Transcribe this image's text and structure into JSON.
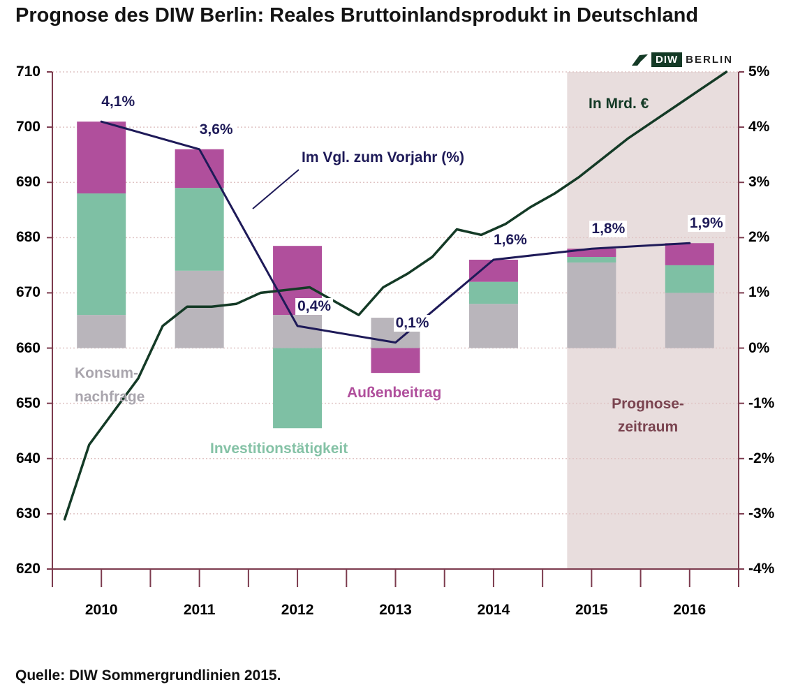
{
  "title": "Prognose des DIW Berlin: Reales Bruttoinlandsprodukt in Deutschland",
  "source": "Quelle: DIW Sommergrundlinien 2015.",
  "logo": {
    "diw": "DIW",
    "berlin": "BERLIN"
  },
  "annotations": {
    "growth_line_label": "Im Vgl. zum Vorjahr (%)",
    "gdp_line_label": "In Mrd. €",
    "konsum_line1": "Konsum-",
    "konsum_line2": "nachfrage",
    "invest_label": "Investitionstätigkeit",
    "aussen_label": "Außenbeitrag",
    "forecast_line1": "Prognose-",
    "forecast_line2": "zeitraum"
  },
  "colors": {
    "axis": "#7c3b4e",
    "grid": "#e0c5c5",
    "forecast_bg": "#e8dddd",
    "growth_line": "#1e1a58",
    "gdp_line": "#143a26",
    "text": "#000000"
  },
  "chart_data": {
    "type": "bar",
    "subtype": "stacked contribution bars with two line overlays",
    "title": "Prognose des DIW Berlin: Reales Bruttoinlandsprodukt in Deutschland",
    "categories": [
      "2010",
      "2011",
      "2012",
      "2013",
      "2014",
      "2015",
      "2016"
    ],
    "left_axis": {
      "unit": "Mrd. €",
      "min": 620,
      "max": 710,
      "step": 10,
      "ticks": [
        "620",
        "630",
        "640",
        "650",
        "660",
        "670",
        "680",
        "690",
        "700",
        "710"
      ]
    },
    "right_axis": {
      "unit": "%",
      "min": -4,
      "max": 5,
      "step": 1,
      "ticks": [
        "-4%",
        "-3%",
        "-2%",
        "-1%",
        "0%",
        "1%",
        "2%",
        "3%",
        "4%",
        "5%"
      ]
    },
    "zero_alignment": {
      "right_axis_zero_at_left_value": 660
    },
    "bar_series": [
      {
        "name": "Konsumnachfrage",
        "color": "#b9b5bb",
        "values_pct": [
          0.6,
          1.4,
          0.6,
          0.55,
          0.8,
          1.55,
          1.0
        ]
      },
      {
        "name": "Investitionstätigkeit",
        "color": "#7ec0a4",
        "values_pct": [
          2.2,
          1.5,
          -1.45,
          0.0,
          0.4,
          0.1,
          0.5
        ]
      },
      {
        "name": "Außenbeitrag",
        "color": "#b04f9c",
        "values_pct": [
          1.3,
          0.7,
          1.25,
          -0.45,
          0.4,
          0.15,
          0.4
        ]
      }
    ],
    "growth_line": {
      "name": "Im Vgl. zum Vorjahr (%)",
      "color": "#1e1a58",
      "values_pct": [
        4.1,
        3.6,
        0.4,
        0.1,
        1.6,
        1.8,
        1.9
      ],
      "point_labels": [
        "4,1%",
        "3,6%",
        "0,4%",
        "0,1%",
        "1,6%",
        "1,8%",
        "1,9%"
      ]
    },
    "gdp_line": {
      "name": "In Mrd. €",
      "color": "#143a26",
      "granularity": "quarterly",
      "values_mrd": [
        629,
        642.5,
        648.5,
        654.5,
        664,
        667.5,
        667.5,
        668,
        670,
        670.5,
        671,
        668.5,
        666,
        671,
        673.5,
        676.5,
        681.5,
        680.5,
        682.5,
        685.5,
        688,
        691,
        694.5,
        698,
        701,
        704,
        707,
        710
      ]
    },
    "forecast_region": {
      "label": "Prognose-zeitraum",
      "covers": [
        "2015",
        "2016"
      ],
      "fill": "#e8dddd"
    },
    "grid": true,
    "legend": "inline colored labels"
  }
}
